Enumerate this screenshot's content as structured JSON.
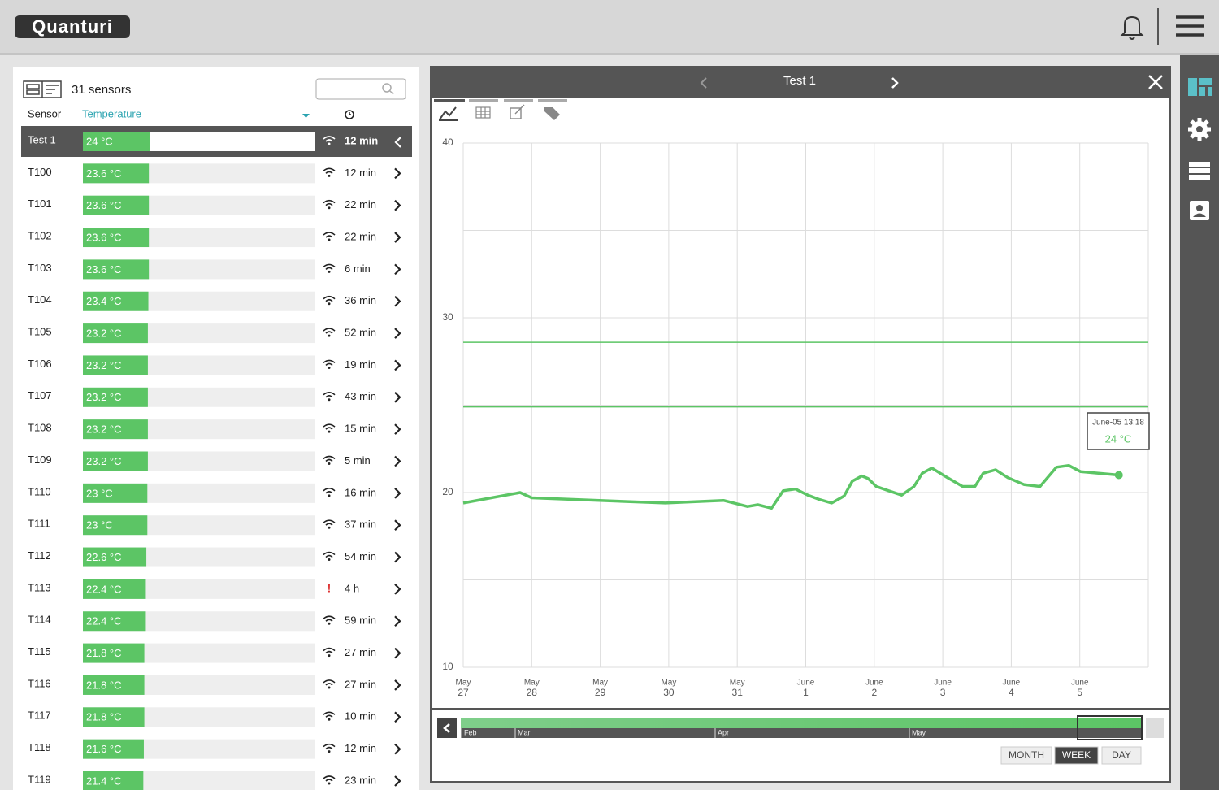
{
  "header": {
    "logo": "Quanturi"
  },
  "sensor_list": {
    "count_label": "31 sensors",
    "columns": {
      "sensor": "Sensor",
      "temperature": "Temperature"
    },
    "rows": [
      {
        "name": "Test 1",
        "value": 24,
        "value_label": "24 °C",
        "age": "12 min"
      },
      {
        "name": "T100",
        "value": 23.6,
        "value_label": "23.6 °C",
        "age": "12 min"
      },
      {
        "name": "T101",
        "value": 23.6,
        "value_label": "23.6 °C",
        "age": "22 min"
      },
      {
        "name": "T102",
        "value": 23.6,
        "value_label": "23.6 °C",
        "age": "22 min"
      },
      {
        "name": "T103",
        "value": 23.6,
        "value_label": "23.6 °C",
        "age": "6 min"
      },
      {
        "name": "T104",
        "value": 23.4,
        "value_label": "23.4 °C",
        "age": "36 min"
      },
      {
        "name": "T105",
        "value": 23.2,
        "value_label": "23.2 °C",
        "age": "52 min"
      },
      {
        "name": "T106",
        "value": 23.2,
        "value_label": "23.2 °C",
        "age": "19 min"
      },
      {
        "name": "T107",
        "value": 23.2,
        "value_label": "23.2 °C",
        "age": "43 min"
      },
      {
        "name": "T108",
        "value": 23.2,
        "value_label": "23.2 °C",
        "age": "15 min"
      },
      {
        "name": "T109",
        "value": 23.2,
        "value_label": "23.2 °C",
        "age": "5 min"
      },
      {
        "name": "T110",
        "value": 23,
        "value_label": "23 °C",
        "age": "16 min"
      },
      {
        "name": "T111",
        "value": 23,
        "value_label": "23 °C",
        "age": "37 min"
      },
      {
        "name": "T112",
        "value": 22.6,
        "value_label": "22.6 °C",
        "age": "54 min"
      },
      {
        "name": "T113",
        "value": 22.4,
        "value_label": "22.4 °C",
        "age": "4 h",
        "alert": true
      },
      {
        "name": "T114",
        "value": 22.4,
        "value_label": "22.4 °C",
        "age": "59 min"
      },
      {
        "name": "T115",
        "value": 21.8,
        "value_label": "21.8 °C",
        "age": "27 min"
      },
      {
        "name": "T116",
        "value": 21.8,
        "value_label": "21.8 °C",
        "age": "27 min"
      },
      {
        "name": "T117",
        "value": 21.8,
        "value_label": "21.8 °C",
        "age": "10 min"
      },
      {
        "name": "T118",
        "value": 21.6,
        "value_label": "21.6 °C",
        "age": "12 min"
      },
      {
        "name": "T119",
        "value": 21.4,
        "value_label": "21.4 °C",
        "age": "23 min"
      }
    ]
  },
  "chart": {
    "type": "line",
    "title": "Test 1",
    "color": "#5cc565",
    "xlim": [
      0,
      10
    ],
    "xticks": [
      {
        "value": 0,
        "label": [
          "May",
          "27"
        ]
      },
      {
        "value": 1,
        "label": [
          "May",
          "28"
        ]
      },
      {
        "value": 2,
        "label": [
          "May",
          "29"
        ]
      },
      {
        "value": 3,
        "label": [
          "May",
          "30"
        ]
      },
      {
        "value": 4,
        "label": [
          "May",
          "31"
        ]
      },
      {
        "value": 5,
        "label": [
          "June",
          "1"
        ]
      },
      {
        "value": 6,
        "label": [
          "June",
          "2"
        ]
      },
      {
        "value": 7,
        "label": [
          "June",
          "3"
        ]
      },
      {
        "value": 8,
        "label": [
          "June",
          "4"
        ]
      },
      {
        "value": 9,
        "label": [
          "June",
          "5"
        ]
      }
    ],
    "ylim": [
      10,
      40
    ],
    "yticks": [
      10,
      20,
      30,
      40
    ],
    "yminor": [
      15,
      25,
      35
    ],
    "thresholds": [
      28.6,
      24.9
    ],
    "x": [
      0,
      0.83,
      1.0,
      2.95,
      3.8,
      4.15,
      4.3,
      4.5,
      4.67,
      4.85,
      5.03,
      5.2,
      5.38,
      5.56,
      5.68,
      5.82,
      5.91,
      6.03,
      6.21,
      6.4,
      6.58,
      6.7,
      6.84,
      7.05,
      7.29,
      7.47,
      7.59,
      7.77,
      7.95,
      8.19,
      8.42,
      8.66,
      8.84,
      9.01,
      9.57
    ],
    "values": [
      19.4,
      20.0,
      19.7,
      19.4,
      19.55,
      19.2,
      19.3,
      19.1,
      20.1,
      20.2,
      19.85,
      19.6,
      19.4,
      19.8,
      20.65,
      20.95,
      20.8,
      20.35,
      20.1,
      19.85,
      20.35,
      21.1,
      21.4,
      20.9,
      20.35,
      20.35,
      21.1,
      21.3,
      20.85,
      20.45,
      20.35,
      21.45,
      21.55,
      21.2,
      21.0
    ],
    "tooltip": {
      "time": "June-05 13:18",
      "value_label": "24 °C"
    },
    "range_labels": [
      "Feb",
      "Mar",
      "Apr",
      "May"
    ],
    "buttons": [
      "MONTH",
      "WEEK",
      "DAY"
    ]
  }
}
